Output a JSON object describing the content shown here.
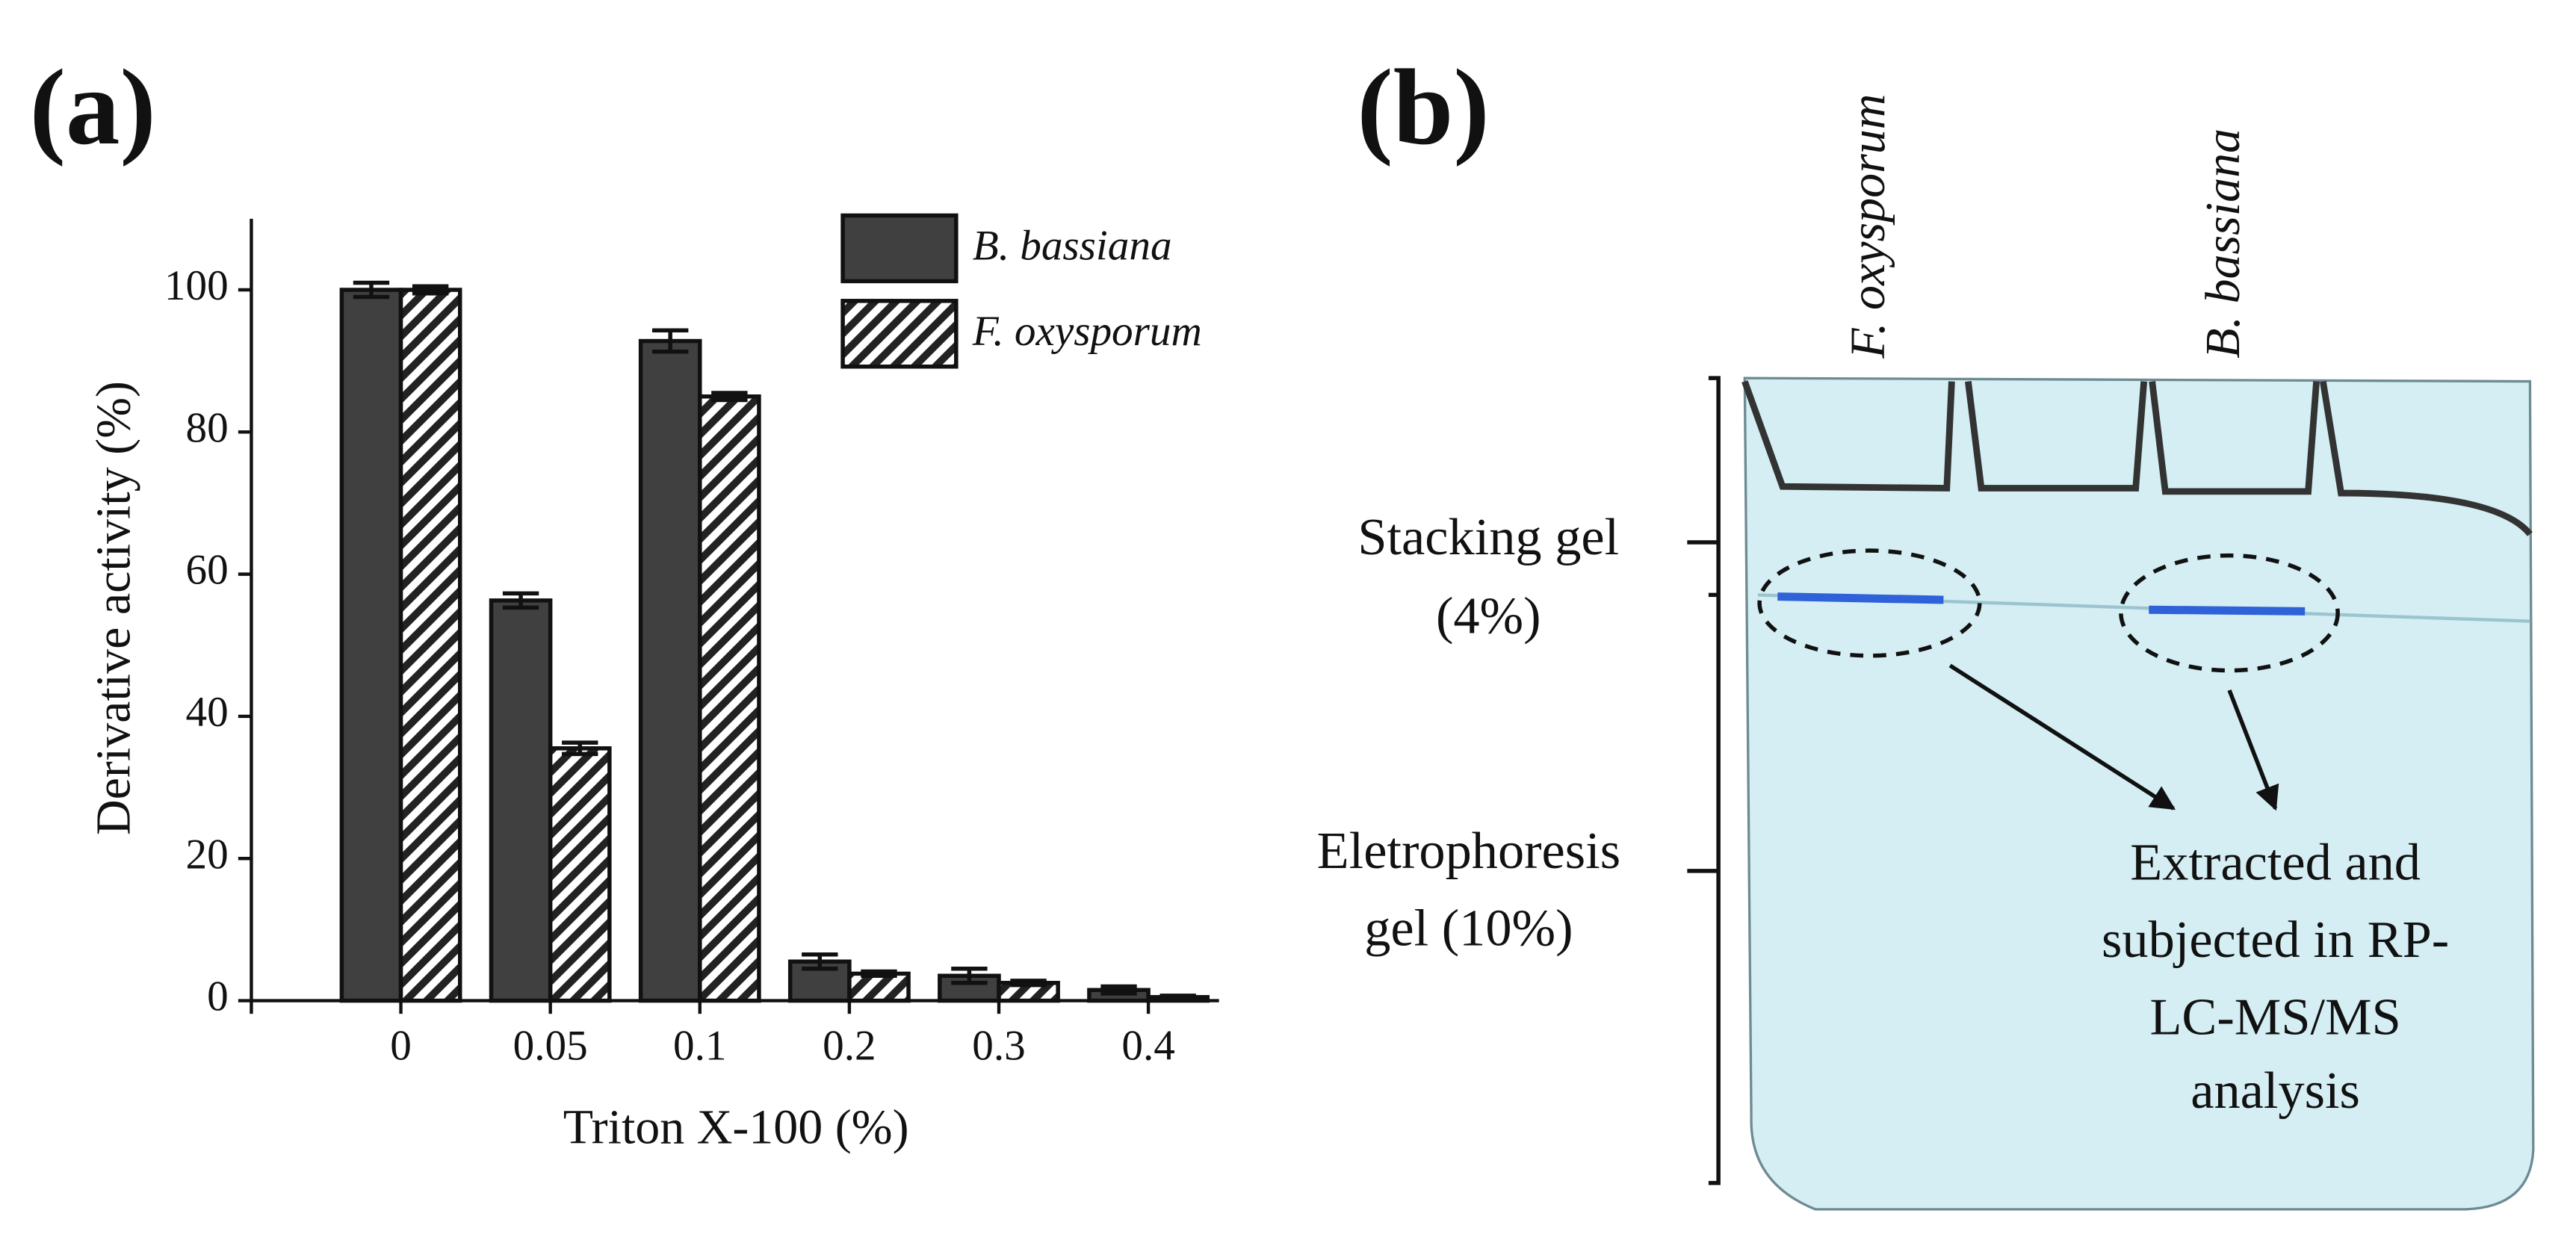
{
  "panel_a": {
    "label": "(a)"
  },
  "chart_data": {
    "type": "bar",
    "x_label": "Triton X-100 (%)",
    "y_label": "Derivative activity (%)",
    "categories": [
      "0",
      "0.05",
      "0.1",
      "0.2",
      "0.3",
      "0.4"
    ],
    "series": [
      {
        "name": "B. bassiana",
        "color": "#404040",
        "hatch": false,
        "values": [
          100,
          56.3,
          92.8,
          5.5,
          3.5,
          1.5
        ],
        "errors": [
          1,
          1,
          1.5,
          1,
          1,
          0.5
        ]
      },
      {
        "name": "F. oxysporum",
        "color": "#222222",
        "hatch": true,
        "values": [
          100,
          35.5,
          85,
          3.8,
          2.5,
          0.5
        ],
        "errors": [
          0.5,
          0.8,
          0.5,
          0.3,
          0.3,
          0.2
        ]
      }
    ],
    "ylim": [
      0,
      110
    ],
    "yticks": [
      0,
      20,
      40,
      60,
      80,
      100
    ],
    "grid": false,
    "legend": "top-right"
  },
  "panel_b": {
    "label": "(b)",
    "lanes": [
      "F. oxysporum",
      "B. bassiana"
    ],
    "stacking_label": [
      "Stacking gel",
      "(4%)"
    ],
    "electrophoresis_label": [
      "Eletrophoresis",
      "gel (10%)"
    ],
    "note": [
      "Extracted and",
      "subjected in RP-",
      "LC-MS/MS",
      "analysis"
    ]
  }
}
